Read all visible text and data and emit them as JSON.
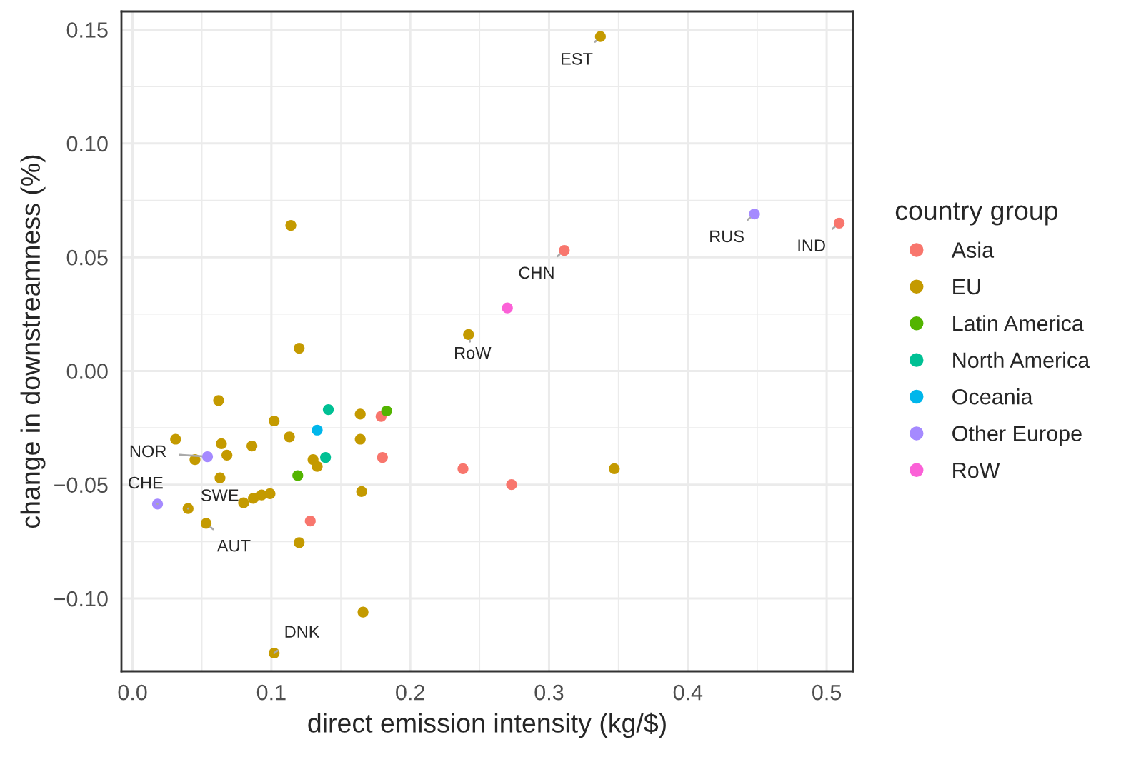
{
  "chart_data": {
    "type": "scatter",
    "xlabel": "direct emission intensity (kg/$)",
    "ylabel": "change in downstreamness (%)",
    "legend_title": "country group",
    "legend": "right",
    "grid": true,
    "marker": "circle",
    "xlim": [
      -0.008,
      0.519
    ],
    "ylim": [
      -0.132,
      0.158
    ],
    "xticks": [
      {
        "value": 0,
        "label": "0.0"
      },
      {
        "value": 0.1,
        "label": "0.1"
      },
      {
        "value": 0.2,
        "label": "0.2"
      },
      {
        "value": 0.3,
        "label": "0.3"
      },
      {
        "value": 0.4,
        "label": "0.4"
      },
      {
        "value": 0.5,
        "label": "0.5"
      }
    ],
    "yticks": [
      {
        "value": -0.1,
        "label": "−0.10"
      },
      {
        "value": -0.05,
        "label": "−0.05"
      },
      {
        "value": 0,
        "label": "0.00"
      },
      {
        "value": 0.05,
        "label": "0.05"
      },
      {
        "value": 0.1,
        "label": "0.10"
      },
      {
        "value": 0.15,
        "label": "0.15"
      }
    ],
    "series": [
      {
        "name": "Asia",
        "color": "#f8766d",
        "x": [
          0.311,
          0.509,
          0.179,
          0.18,
          0.238,
          0.273,
          0.128
        ],
        "values": [
          0.053,
          0.065,
          -0.02,
          -0.038,
          -0.043,
          -0.05,
          -0.066
        ]
      },
      {
        "name": "EU",
        "color": "#c49a00",
        "x": [
          0.337,
          0.114,
          0.12,
          0.242,
          0.062,
          0.164,
          0.102,
          0.031,
          0.113,
          0.164,
          0.064,
          0.086,
          0.068,
          0.045,
          0.13,
          0.133,
          0.063,
          0.165,
          0.08,
          0.087,
          0.093,
          0.099,
          0.04,
          0.053,
          0.12,
          0.166,
          0.102,
          0.347
        ],
        "values": [
          0.147,
          0.064,
          0.01,
          0.016,
          -0.013,
          -0.019,
          -0.022,
          -0.03,
          -0.029,
          -0.03,
          -0.032,
          -0.033,
          -0.037,
          -0.039,
          -0.039,
          -0.042,
          -0.047,
          -0.053,
          -0.058,
          -0.056,
          -0.0545,
          -0.054,
          -0.0605,
          -0.067,
          -0.0755,
          -0.106,
          -0.124,
          -0.043
        ]
      },
      {
        "name": "Latin America",
        "color": "#53b400",
        "x": [
          0.183,
          0.119
        ],
        "values": [
          -0.0176,
          -0.046
        ]
      },
      {
        "name": "North America",
        "color": "#00c094",
        "x": [
          0.141,
          0.139
        ],
        "values": [
          -0.017,
          -0.038
        ]
      },
      {
        "name": "Oceania",
        "color": "#00b6eb",
        "x": [
          0.133
        ],
        "values": [
          -0.026
        ]
      },
      {
        "name": "Other Europe",
        "color": "#a58aff",
        "x": [
          0.448,
          0.054,
          0.018
        ],
        "values": [
          0.069,
          -0.0377,
          -0.0585
        ]
      },
      {
        "name": "RoW",
        "color": "#fb61d7",
        "x": [
          0.27
        ],
        "values": [
          0.0277
        ]
      }
    ],
    "annotations": [
      {
        "text": "EST",
        "x": 0.337,
        "y": 0.147
      },
      {
        "text": "RUS",
        "x": 0.448,
        "y": 0.069
      },
      {
        "text": "IND",
        "x": 0.509,
        "y": 0.065
      },
      {
        "text": "CHN",
        "x": 0.311,
        "y": 0.053
      },
      {
        "text": "RoW",
        "x": 0.242,
        "y": 0.016
      },
      {
        "text": "NOR",
        "x": 0.054,
        "y": -0.0377
      },
      {
        "text": "CHE",
        "x": 0.018,
        "y": -0.0585
      },
      {
        "text": "SWE",
        "x": 0.04,
        "y": -0.0605
      },
      {
        "text": "AUT",
        "x": 0.053,
        "y": -0.067
      },
      {
        "text": "DNK",
        "x": 0.102,
        "y": -0.124
      }
    ]
  }
}
